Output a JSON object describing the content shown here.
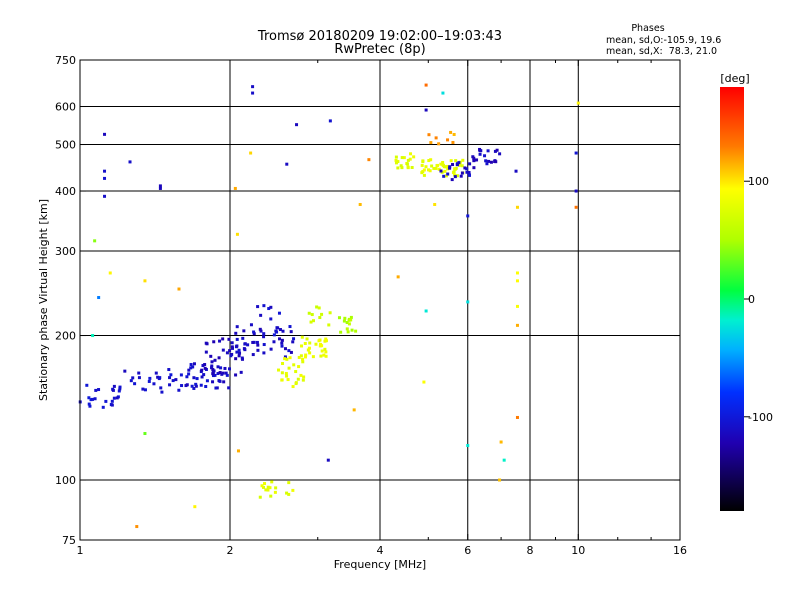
{
  "header": {
    "title": "Tromsø 20180209 19:02:00–19:03:43",
    "subtitle": "RwPretec (8p)",
    "phases_heading": "Phases",
    "phases_line1": "mean, sd,O:-105.9, 19.6",
    "phases_line2": "mean, sd,X:  78.3, 21.0"
  },
  "colorbar": {
    "label": "[deg]",
    "ticks": [
      {
        "value": 100,
        "label": "100"
      },
      {
        "value": 0,
        "label": "0"
      },
      {
        "value": -100,
        "label": "-100"
      }
    ],
    "range": [
      -180,
      180
    ]
  },
  "chart_data": {
    "type": "scatter",
    "xlabel": "Frequency [MHz]",
    "ylabel": "Stationary phase Virtual Height [km]",
    "xscale": "log",
    "yscale": "log",
    "xlim": [
      1,
      16
    ],
    "ylim": [
      75,
      750
    ],
    "xticks": [
      {
        "value": 1,
        "label": "1"
      },
      {
        "value": 2,
        "label": "2"
      },
      {
        "value": 4,
        "label": "4"
      },
      {
        "value": 6,
        "label": "6"
      },
      {
        "value": 8,
        "label": "8"
      },
      {
        "value": 10,
        "label": "10"
      },
      {
        "value": 16,
        "label": "16"
      }
    ],
    "x_gridlines": [
      2,
      4,
      6,
      8,
      10
    ],
    "x_minor_ticks": [
      3,
      5,
      7,
      9,
      12,
      14
    ],
    "yticks": [
      {
        "value": 75,
        "label": "75"
      },
      {
        "value": 100,
        "label": "100"
      },
      {
        "value": 200,
        "label": "200"
      },
      {
        "value": 300,
        "label": "300"
      },
      {
        "value": 400,
        "label": "400"
      },
      {
        "value": 500,
        "label": "500"
      },
      {
        "value": 600,
        "label": "600"
      },
      {
        "value": 750,
        "label": "750"
      }
    ],
    "y_gridlines": [
      100,
      200,
      300,
      400,
      500,
      600
    ],
    "grid": true,
    "clusters": [
      {
        "x": [
          1.0,
          1.2
        ],
        "y": [
          140,
          160
        ],
        "phase": -105,
        "n": 22
      },
      {
        "x": [
          1.2,
          1.6
        ],
        "y": [
          150,
          170
        ],
        "phase": -108,
        "n": 26
      },
      {
        "x": [
          1.55,
          2.0
        ],
        "y": [
          155,
          175
        ],
        "phase": -110,
        "n": 40
      },
      {
        "x": [
          1.75,
          2.15
        ],
        "y": [
          165,
          200
        ],
        "phase": -115,
        "n": 45
      },
      {
        "x": [
          2.05,
          2.7
        ],
        "y": [
          180,
          210
        ],
        "phase": -112,
        "n": 40
      },
      {
        "x": [
          2.2,
          2.55
        ],
        "y": [
          200,
          235
        ],
        "phase": -108,
        "n": 12
      },
      {
        "x": [
          2.5,
          2.8
        ],
        "y": [
          165,
          180
        ],
        "phase": 80,
        "n": 14
      },
      {
        "x": [
          2.5,
          2.85
        ],
        "y": [
          155,
          165
        ],
        "phase": 78,
        "n": 10
      },
      {
        "x": [
          2.75,
          3.15
        ],
        "y": [
          180,
          200
        ],
        "phase": 82,
        "n": 28
      },
      {
        "x": [
          2.85,
          3.2
        ],
        "y": [
          205,
          240
        ],
        "phase": 70,
        "n": 10
      },
      {
        "x": [
          3.3,
          3.6
        ],
        "y": [
          203,
          220
        ],
        "phase": 55,
        "n": 14
      },
      {
        "x": [
          2.3,
          2.75
        ],
        "y": [
          92,
          100
        ],
        "phase": 78,
        "n": 16
      },
      {
        "x": [
          4.3,
          4.7
        ],
        "y": [
          440,
          480
        ],
        "phase": 78,
        "n": 18
      },
      {
        "x": [
          4.8,
          5.9
        ],
        "y": [
          430,
          465
        ],
        "phase": 80,
        "n": 45
      },
      {
        "x": [
          5.3,
          6.1
        ],
        "y": [
          420,
          460
        ],
        "phase": -112,
        "n": 22
      },
      {
        "x": [
          6.1,
          7.0
        ],
        "y": [
          445,
          490
        ],
        "phase": -115,
        "n": 22
      },
      {
        "x": [
          5.0,
          5.8
        ],
        "y": [
          500,
          540
        ],
        "phase": 120,
        "n": 8
      }
    ],
    "isolated_points": [
      {
        "x": 1.12,
        "y": 525,
        "phase": -110
      },
      {
        "x": 1.12,
        "y": 440,
        "phase": -105
      },
      {
        "x": 1.12,
        "y": 425,
        "phase": -105
      },
      {
        "x": 1.12,
        "y": 390,
        "phase": -108
      },
      {
        "x": 1.26,
        "y": 460,
        "phase": -112
      },
      {
        "x": 1.45,
        "y": 410,
        "phase": -110
      },
      {
        "x": 1.45,
        "y": 405,
        "phase": -110
      },
      {
        "x": 2.22,
        "y": 660,
        "phase": -112
      },
      {
        "x": 2.22,
        "y": 640,
        "phase": -110
      },
      {
        "x": 2.6,
        "y": 455,
        "phase": -115
      },
      {
        "x": 2.72,
        "y": 550,
        "phase": -108
      },
      {
        "x": 3.18,
        "y": 560,
        "phase": -112
      },
      {
        "x": 2.2,
        "y": 480,
        "phase": 100
      },
      {
        "x": 2.05,
        "y": 405,
        "phase": 120
      },
      {
        "x": 2.07,
        "y": 325,
        "phase": 100
      },
      {
        "x": 3.65,
        "y": 375,
        "phase": 120
      },
      {
        "x": 1.07,
        "y": 315,
        "phase": 40
      },
      {
        "x": 1.15,
        "y": 270,
        "phase": 100
      },
      {
        "x": 1.06,
        "y": 200,
        "phase": -20
      },
      {
        "x": 1.09,
        "y": 240,
        "phase": -50
      },
      {
        "x": 1.35,
        "y": 260,
        "phase": 100
      },
      {
        "x": 1.58,
        "y": 250,
        "phase": 110
      },
      {
        "x": 4.35,
        "y": 265,
        "phase": 120
      },
      {
        "x": 4.95,
        "y": 225,
        "phase": -20
      },
      {
        "x": 4.9,
        "y": 160,
        "phase": 90
      },
      {
        "x": 3.55,
        "y": 140,
        "phase": 120
      },
      {
        "x": 3.15,
        "y": 110,
        "phase": -120
      },
      {
        "x": 1.7,
        "y": 88,
        "phase": 100
      },
      {
        "x": 1.3,
        "y": 80,
        "phase": 120
      },
      {
        "x": 1.35,
        "y": 125,
        "phase": 30
      },
      {
        "x": 2.08,
        "y": 115,
        "phase": 110
      },
      {
        "x": 6.0,
        "y": 355,
        "phase": -110
      },
      {
        "x": 6.0,
        "y": 235,
        "phase": -20
      },
      {
        "x": 6.0,
        "y": 118,
        "phase": -20
      },
      {
        "x": 6.95,
        "y": 100,
        "phase": 110
      },
      {
        "x": 7.1,
        "y": 110,
        "phase": -20
      },
      {
        "x": 7.5,
        "y": 440,
        "phase": -110
      },
      {
        "x": 7.55,
        "y": 370,
        "phase": 100
      },
      {
        "x": 7.55,
        "y": 270,
        "phase": 90
      },
      {
        "x": 7.55,
        "y": 260,
        "phase": 90
      },
      {
        "x": 7.55,
        "y": 230,
        "phase": 90
      },
      {
        "x": 7.55,
        "y": 210,
        "phase": 120
      },
      {
        "x": 7.55,
        "y": 135,
        "phase": 130
      },
      {
        "x": 7.0,
        "y": 120,
        "phase": 120
      },
      {
        "x": 9.9,
        "y": 480,
        "phase": -110
      },
      {
        "x": 9.9,
        "y": 400,
        "phase": -120
      },
      {
        "x": 9.9,
        "y": 370,
        "phase": 130
      },
      {
        "x": 10.0,
        "y": 610,
        "phase": 100
      },
      {
        "x": 4.95,
        "y": 665,
        "phase": 130
      },
      {
        "x": 4.95,
        "y": 590,
        "phase": -110
      },
      {
        "x": 5.35,
        "y": 640,
        "phase": -20
      },
      {
        "x": 5.15,
        "y": 375,
        "phase": 100
      },
      {
        "x": 3.8,
        "y": 465,
        "phase": 120
      }
    ]
  }
}
